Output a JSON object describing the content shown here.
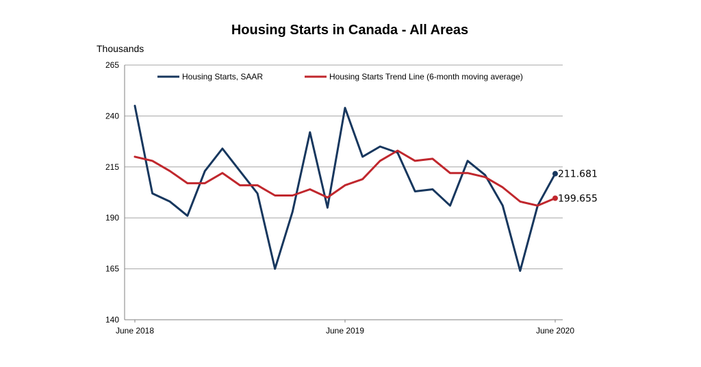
{
  "chart_data": {
    "type": "line",
    "title": "Housing Starts in Canada - All Areas",
    "ylabel": "Thousands",
    "xlabel": "",
    "ylim": [
      140,
      265
    ],
    "yticks": [
      140,
      165,
      190,
      215,
      240,
      265
    ],
    "grid": true,
    "legend_position": "top",
    "x_tick_labels": [
      {
        "index": 0,
        "label": "June 2018"
      },
      {
        "index": 12,
        "label": "June 2019"
      },
      {
        "index": 24,
        "label": "June 2020"
      }
    ],
    "series": [
      {
        "name": "Housing Starts, SAAR",
        "color": "#17375e",
        "values": [
          245,
          202,
          198,
          191,
          213,
          224,
          213,
          202,
          165,
          193,
          232,
          195,
          244,
          220,
          225,
          222,
          203,
          204,
          196,
          218,
          211,
          196,
          164,
          196,
          211.681
        ],
        "end_label": "211.681"
      },
      {
        "name": "Housing Starts Trend Line (6-month moving average)",
        "color": "#c0272d",
        "values": [
          220,
          218,
          213,
          207,
          207,
          212,
          206,
          206,
          201,
          201,
          204,
          200,
          206,
          209,
          218,
          223,
          218,
          219,
          212,
          212,
          210,
          205,
          198,
          196,
          199.655
        ],
        "end_label": "199.655"
      }
    ]
  }
}
